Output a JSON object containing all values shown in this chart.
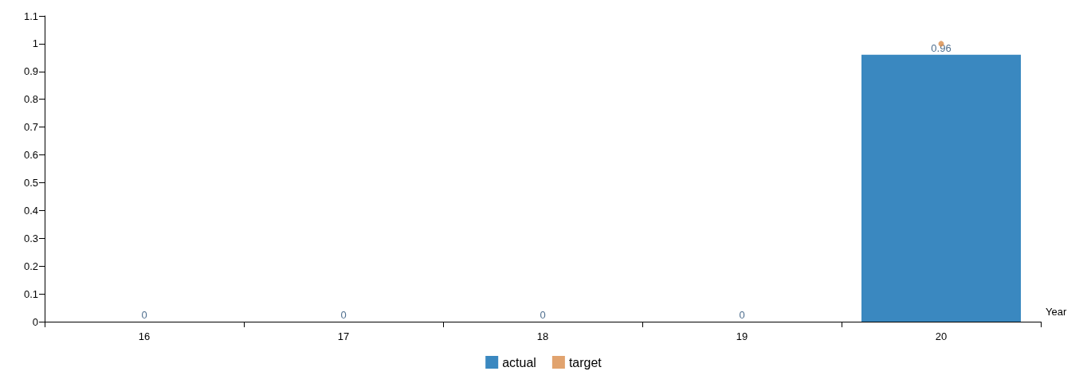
{
  "chart_data": {
    "type": "bar",
    "xlabel": "Year",
    "categories": [
      "16",
      "17",
      "18",
      "19",
      "20"
    ],
    "series": [
      {
        "name": "actual",
        "color": "#3a88c0",
        "values": [
          0,
          0,
          0,
          0,
          0.96
        ],
        "value_labels": [
          "0",
          "0",
          "0",
          "0",
          "0.96"
        ]
      },
      {
        "name": "target",
        "type": "scatter",
        "color": "#d98c4a",
        "values": [
          null,
          null,
          null,
          null,
          1.0
        ]
      }
    ],
    "ylim": [
      0,
      1.1
    ],
    "yticks": [
      0,
      0.1,
      0.2,
      0.3,
      0.4,
      0.5,
      0.6,
      0.7,
      0.8,
      0.9,
      1,
      1.1
    ],
    "grid": false,
    "legend": "bottom",
    "marker": "circle"
  }
}
